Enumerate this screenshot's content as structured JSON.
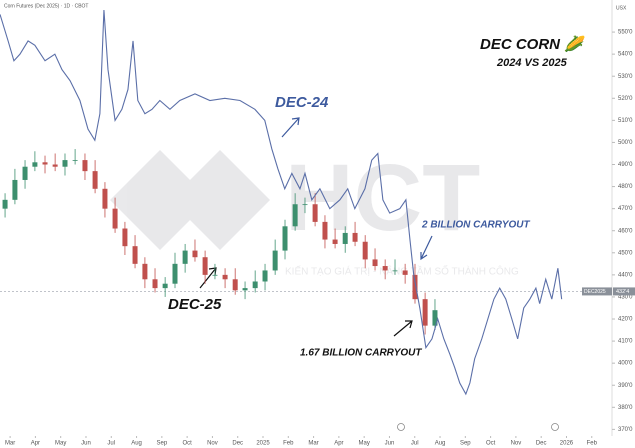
{
  "chart_data": {
    "type": "candlestick",
    "header": "Corn Futures (Dec 2025) · 1D · CBOT",
    "title": "DEC CORN 🌽",
    "subtitle": "2024 VS 2025",
    "axis_unit": "USX",
    "watermark": "HCT",
    "watermark_slogan": "KIẾN TẠO GIÁ TRỊ - NÂNG TẦM SỐ THÀNH CÔNG",
    "annotations": [
      "2 BILLION CARRYOUT",
      "1.67 BILLION CARRYOUT"
    ],
    "price_line": {
      "name": "DEC2025",
      "value": 432.5,
      "label": "432'4",
      "color": "#9aa0aa"
    },
    "xlim": [
      -0.4,
      23.8
    ],
    "ylim": [
      367,
      560
    ],
    "xticks": [
      {
        "value": 0,
        "label": "Mar"
      },
      {
        "value": 1,
        "label": "Apr"
      },
      {
        "value": 2,
        "label": "May"
      },
      {
        "value": 3,
        "label": "Jun"
      },
      {
        "value": 4,
        "label": "Jul"
      },
      {
        "value": 5,
        "label": "Aug"
      },
      {
        "value": 6,
        "label": "Sep"
      },
      {
        "value": 7,
        "label": "Oct"
      },
      {
        "value": 8,
        "label": "Nov"
      },
      {
        "value": 9,
        "label": "Dec"
      },
      {
        "value": 10,
        "label": "2025"
      },
      {
        "value": 11,
        "label": "Feb"
      },
      {
        "value": 12,
        "label": "Mar"
      },
      {
        "value": 13,
        "label": "Apr"
      },
      {
        "value": 14,
        "label": "May"
      },
      {
        "value": 15,
        "label": "Jun"
      },
      {
        "value": 16,
        "label": "Jul"
      },
      {
        "value": 17,
        "label": "Aug"
      },
      {
        "value": 18,
        "label": "Sep"
      },
      {
        "value": 19,
        "label": "Oct"
      },
      {
        "value": 20,
        "label": "Nov"
      },
      {
        "value": 21,
        "label": "Dec"
      },
      {
        "value": 22,
        "label": "2026"
      },
      {
        "value": 23,
        "label": "Feb"
      }
    ],
    "yticks": [
      {
        "value": 550,
        "label": "550'0"
      },
      {
        "value": 540,
        "label": "540'0"
      },
      {
        "value": 530,
        "label": "530'0"
      },
      {
        "value": 520,
        "label": "520'0"
      },
      {
        "value": 510,
        "label": "510'0"
      },
      {
        "value": 500,
        "label": "500'0"
      },
      {
        "value": 490,
        "label": "490'0"
      },
      {
        "value": 480,
        "label": "480'0"
      },
      {
        "value": 470,
        "label": "470'0"
      },
      {
        "value": 460,
        "label": "460'0"
      },
      {
        "value": 450,
        "label": "450'0"
      },
      {
        "value": 440,
        "label": "440'0"
      },
      {
        "value": 430,
        "label": "430'0"
      },
      {
        "value": 420,
        "label": "420'0"
      },
      {
        "value": 410,
        "label": "410'0"
      },
      {
        "value": 400,
        "label": "400'0"
      },
      {
        "value": 390,
        "label": "390'0"
      },
      {
        "value": 380,
        "label": "380'0"
      },
      {
        "value": 370,
        "label": "370'0"
      }
    ],
    "series": [
      {
        "name": "DEC-25",
        "type": "candlestick",
        "up_color": "#3d8f6e",
        "down_color": "#c0504d",
        "x": [
          -0.2,
          0.19,
          0.59,
          0.98,
          1.38,
          1.78,
          2.17,
          2.57,
          2.96,
          3.36,
          3.75,
          4.15,
          4.54,
          4.94,
          5.33,
          5.73,
          6.13,
          6.52,
          6.92,
          7.31,
          7.71,
          8.1,
          8.5,
          8.9,
          9.29,
          9.69,
          10.08,
          10.48,
          10.87,
          11.27,
          11.66,
          12.06,
          12.45,
          12.85,
          13.25,
          13.64,
          14.04,
          14.43,
          14.83,
          15.22,
          15.62,
          16.01,
          16.41,
          16.8
        ],
        "open": [
          470,
          474,
          483,
          489,
          491,
          490,
          489,
          492,
          492,
          487,
          479,
          470,
          461,
          453,
          445,
          438,
          434,
          436,
          445,
          451,
          448,
          440,
          440,
          438,
          433,
          434,
          437,
          442,
          451,
          462,
          472,
          472,
          464,
          456,
          454,
          459,
          455,
          447,
          444,
          442,
          442,
          440,
          429,
          417
        ],
        "high": [
          477,
          488,
          492,
          496,
          494,
          495,
          495,
          497,
          495,
          492,
          482,
          475,
          464,
          458,
          448,
          443,
          439,
          450,
          454,
          456,
          451,
          445,
          443,
          443,
          437,
          442,
          445,
          456,
          465,
          477,
          475,
          477,
          467,
          461,
          462,
          464,
          458,
          452,
          447,
          447,
          445,
          445,
          432,
          429
        ],
        "low": [
          466,
          472,
          479,
          487,
          486,
          487,
          485,
          490,
          483,
          477,
          466,
          459,
          449,
          443,
          434,
          432,
          430,
          434,
          441,
          446,
          436,
          438,
          434,
          431,
          429,
          432,
          433,
          440,
          447,
          460,
          468,
          462,
          452,
          452,
          450,
          453,
          443,
          442,
          438,
          440,
          436,
          427,
          413,
          415
        ],
        "close": [
          474,
          483,
          489,
          491,
          490,
          489,
          492,
          492,
          487,
          479,
          470,
          461,
          453,
          445,
          438,
          434,
          436,
          445,
          451,
          448,
          440,
          440,
          438,
          433,
          434,
          437,
          442,
          451,
          462,
          472,
          472,
          464,
          456,
          454,
          459,
          455,
          447,
          444,
          442,
          442,
          440,
          429,
          417,
          424
        ]
      },
      {
        "name": "DEC-24",
        "type": "line",
        "color": "#5b6fa8",
        "x": [
          -0.4,
          -0.08,
          0.15,
          0.39,
          0.71,
          0.98,
          1.38,
          1.77,
          2.05,
          2.37,
          2.76,
          3.08,
          3.35,
          3.55,
          3.71,
          3.87,
          4.15,
          4.42,
          4.66,
          4.86,
          5.05,
          5.33,
          5.61,
          5.92,
          6.32,
          6.71,
          7.31,
          7.9,
          8.49,
          9.09,
          9.68,
          10.07,
          10.35,
          10.59,
          10.86,
          11.14,
          11.46,
          11.66,
          11.93,
          12.25,
          12.64,
          13.04,
          13.35,
          13.63,
          14.03,
          14.3,
          14.54,
          14.74,
          15.01,
          15.41,
          15.65,
          15.81,
          15.96,
          16.2,
          16.44,
          16.68,
          16.91,
          17.15,
          17.39,
          17.58,
          17.78,
          18.02,
          18.18,
          18.37,
          18.65,
          18.89,
          19.13,
          19.36,
          19.6,
          19.84,
          20.07,
          20.31,
          20.55,
          20.79,
          20.94,
          21.18,
          21.42,
          21.66,
          21.81
        ],
        "values": [
          558,
          546,
          537,
          540,
          546,
          544,
          537,
          540,
          533,
          528,
          519,
          506,
          501,
          513,
          560,
          533,
          510,
          515,
          524,
          546,
          519,
          513,
          515,
          519,
          515,
          519,
          522,
          519,
          520,
          519,
          515,
          510,
          497,
          488,
          479,
          486,
          479,
          486,
          474,
          479,
          470,
          474,
          479,
          470,
          479,
          492,
          495,
          474,
          468,
          470,
          474,
          456,
          440,
          425,
          407,
          411,
          420,
          411,
          404,
          398,
          391,
          386,
          391,
          402,
          411,
          420,
          429,
          434,
          429,
          420,
          411,
          425,
          429,
          434,
          427,
          438,
          429,
          443,
          429
        ]
      }
    ]
  }
}
